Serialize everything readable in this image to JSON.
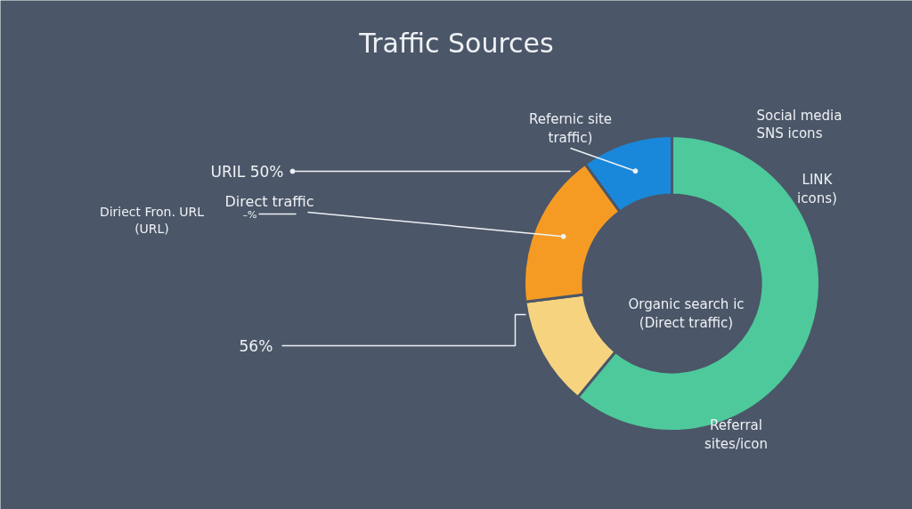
{
  "chart_data": {
    "type": "donut",
    "title": "Traffic Sources",
    "categories": [
      "Organic search ic (Direct traffic)",
      null,
      "Direct traffic",
      "Refernic site traffic)"
    ],
    "values": [
      61,
      12,
      17,
      10
    ],
    "colors": [
      "#4ec99b",
      "#f6d47f",
      "#f59b24",
      "#1a88da"
    ],
    "annotations": [
      "URIL 50%",
      "Diriect Fron. URL (URL)",
      "–%",
      "56%",
      "LINK icons)",
      "Referral sites/icon",
      "Social media",
      "SNS icons"
    ]
  }
}
